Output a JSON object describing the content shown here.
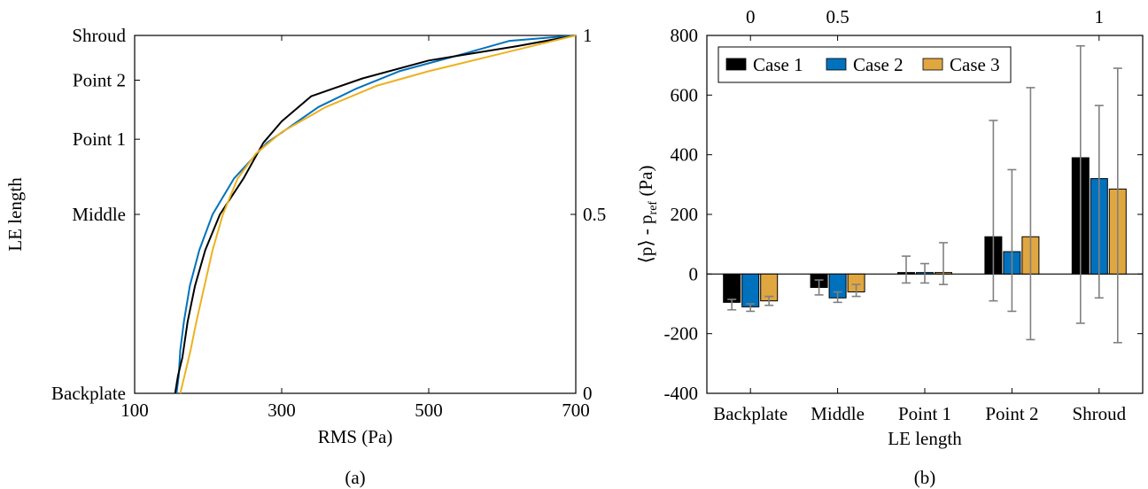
{
  "chart_data": [
    {
      "type": "line",
      "panel_label": "(a)",
      "xlabel": "RMS (Pa)",
      "ylabel": "LE length",
      "xlim": [
        100,
        700
      ],
      "x_ticks": [
        100,
        300,
        500,
        700
      ],
      "ylim": [
        0,
        1
      ],
      "y_left_ticks": [
        {
          "label": "Backplate",
          "value": 0
        },
        {
          "label": "Middle",
          "value": 0.5
        },
        {
          "label": "Point 1",
          "value": 0.71
        },
        {
          "label": "Point 2",
          "value": 0.875
        },
        {
          "label": "Shroud",
          "value": 1
        }
      ],
      "y_right_ticks": [
        {
          "label": "0",
          "value": 0
        },
        {
          "label": "0.5",
          "value": 0.5
        },
        {
          "label": "1",
          "value": 1
        }
      ],
      "grid": false,
      "series": [
        {
          "color": "#0072BD",
          "points": [
            [
              157,
              0
            ],
            [
              160,
              0.05
            ],
            [
              162,
              0.12
            ],
            [
              167,
              0.2
            ],
            [
              175,
              0.3
            ],
            [
              188,
              0.4
            ],
            [
              206,
              0.5
            ],
            [
              235,
              0.6
            ],
            [
              280,
              0.7
            ],
            [
              350,
              0.8
            ],
            [
              400,
              0.85
            ],
            [
              460,
              0.9
            ],
            [
              550,
              0.95
            ],
            [
              610,
              0.985
            ],
            [
              700,
              1
            ]
          ]
        },
        {
          "color": "#000000",
          "points": [
            [
              155,
              0
            ],
            [
              159,
              0.05
            ],
            [
              165,
              0.1
            ],
            [
              172,
              0.2
            ],
            [
              182,
              0.3
            ],
            [
              196,
              0.4
            ],
            [
              216,
              0.5
            ],
            [
              248,
              0.6
            ],
            [
              275,
              0.7
            ],
            [
              300,
              0.76
            ],
            [
              340,
              0.83
            ],
            [
              410,
              0.88
            ],
            [
              500,
              0.93
            ],
            [
              620,
              0.97
            ],
            [
              700,
              1
            ]
          ]
        },
        {
          "color": "#EDB120",
          "points": [
            [
              162,
              0
            ],
            [
              168,
              0.05
            ],
            [
              176,
              0.12
            ],
            [
              184,
              0.2
            ],
            [
              195,
              0.3
            ],
            [
              206,
              0.4
            ],
            [
              220,
              0.5
            ],
            [
              240,
              0.6
            ],
            [
              265,
              0.67
            ],
            [
              300,
              0.73
            ],
            [
              360,
              0.8
            ],
            [
              430,
              0.86
            ],
            [
              500,
              0.9
            ],
            [
              600,
              0.95
            ],
            [
              700,
              1
            ]
          ]
        }
      ]
    },
    {
      "type": "bar",
      "panel_label": "(b)",
      "xlabel": "LE length",
      "ylabel_main": "⟨p⟩ - p",
      "ylabel_sub": "ref",
      "ylabel_unit": " (Pa)",
      "ylim": [
        -400,
        800
      ],
      "y_ticks": [
        -400,
        -200,
        0,
        200,
        400,
        600,
        800
      ],
      "categories": [
        "Backplate",
        "Middle",
        "Point 1",
        "Point 2",
        "Shroud"
      ],
      "top_axis_ticks": [
        {
          "label": "0",
          "category_index": 0
        },
        {
          "label": "0.5",
          "category_index": 1
        },
        {
          "label": "1",
          "category_index": 4
        }
      ],
      "legend_position": "top-left",
      "series": [
        {
          "name": "Case 1",
          "color": "#000000",
          "values": [
            -95,
            -45,
            5,
            125,
            390
          ],
          "err_low": [
            -120,
            -70,
            -30,
            -90,
            -165
          ],
          "err_high": [
            -85,
            -20,
            60,
            515,
            765
          ]
        },
        {
          "name": "Case 2",
          "color": "#0072BD",
          "values": [
            -110,
            -80,
            5,
            75,
            320
          ],
          "err_low": [
            -125,
            -95,
            -30,
            -125,
            -80
          ],
          "err_high": [
            -100,
            -60,
            35,
            350,
            565
          ]
        },
        {
          "name": "Case 3",
          "color": "#E0A640",
          "values": [
            -90,
            -60,
            5,
            125,
            285
          ],
          "err_low": [
            -105,
            -75,
            -35,
            -220,
            -230
          ],
          "err_high": [
            -75,
            -35,
            105,
            625,
            690
          ]
        }
      ]
    }
  ]
}
